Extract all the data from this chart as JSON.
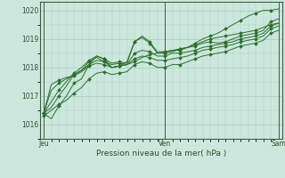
{
  "xlabel": "Pression niveau de la mer( hPa )",
  "bg_color": "#cce8de",
  "grid_color": "#aaccbb",
  "line_color": "#2d6e2d",
  "marker_color": "#2d6e2d",
  "ylim": [
    1015.5,
    1020.3
  ],
  "yticks": [
    1016,
    1017,
    1018,
    1019,
    1020
  ],
  "xtick_labels": [
    "Jeu",
    "Ven",
    "Sam"
  ],
  "lines": [
    [
      1016.4,
      1016.2,
      1016.65,
      1017.0,
      1017.45,
      1017.6,
      1018.1,
      1018.4,
      1018.3,
      1018.0,
      1018.05,
      1018.2,
      1018.9,
      1019.05,
      1018.85,
      1018.5,
      1018.5,
      1018.55,
      1018.65,
      1018.7,
      1018.85,
      1019.0,
      1019.1,
      1019.2,
      1019.35,
      1019.5,
      1019.65,
      1019.8,
      1019.9,
      1020.0,
      1020.0,
      1020.05
    ],
    [
      1016.4,
      1016.6,
      1017.0,
      1017.35,
      1017.75,
      1017.9,
      1018.2,
      1018.35,
      1018.2,
      1018.1,
      1018.15,
      1018.1,
      1018.2,
      1018.35,
      1018.45,
      1018.5,
      1018.55,
      1018.6,
      1018.65,
      1018.7,
      1018.8,
      1018.9,
      1019.0,
      1019.05,
      1019.1,
      1019.15,
      1019.2,
      1019.25,
      1019.3,
      1019.4,
      1019.5,
      1019.55
    ],
    [
      1016.4,
      1016.8,
      1017.2,
      1017.5,
      1017.8,
      1018.0,
      1018.25,
      1018.4,
      1018.3,
      1018.15,
      1018.2,
      1018.15,
      1018.9,
      1019.1,
      1018.9,
      1018.55,
      1018.55,
      1018.6,
      1018.6,
      1018.7,
      1018.75,
      1018.85,
      1018.9,
      1018.85,
      1018.9,
      1019.0,
      1019.1,
      1019.15,
      1019.2,
      1019.3,
      1019.6,
      1019.7
    ],
    [
      1016.4,
      1017.2,
      1017.45,
      1017.6,
      1017.75,
      1017.9,
      1018.1,
      1018.25,
      1018.2,
      1018.0,
      1018.05,
      1018.1,
      1018.5,
      1018.6,
      1018.55,
      1018.4,
      1018.4,
      1018.5,
      1018.5,
      1018.55,
      1018.6,
      1018.7,
      1018.75,
      1018.8,
      1018.85,
      1018.9,
      1019.0,
      1019.05,
      1019.1,
      1019.2,
      1019.45,
      1019.55
    ],
    [
      1016.4,
      1017.4,
      1017.55,
      1017.65,
      1017.7,
      1017.85,
      1018.05,
      1018.15,
      1018.1,
      1018.0,
      1018.05,
      1018.1,
      1018.3,
      1018.4,
      1018.35,
      1018.25,
      1018.25,
      1018.3,
      1018.35,
      1018.4,
      1018.5,
      1018.6,
      1018.65,
      1018.7,
      1018.75,
      1018.8,
      1018.9,
      1018.95,
      1019.0,
      1019.1,
      1019.35,
      1019.45
    ],
    [
      1016.3,
      1016.5,
      1016.7,
      1016.85,
      1017.1,
      1017.3,
      1017.6,
      1017.8,
      1017.85,
      1017.75,
      1017.8,
      1017.85,
      1018.1,
      1018.2,
      1018.15,
      1018.0,
      1018.0,
      1018.1,
      1018.1,
      1018.2,
      1018.3,
      1018.4,
      1018.45,
      1018.5,
      1018.55,
      1018.65,
      1018.75,
      1018.8,
      1018.85,
      1018.95,
      1019.2,
      1019.3
    ]
  ]
}
